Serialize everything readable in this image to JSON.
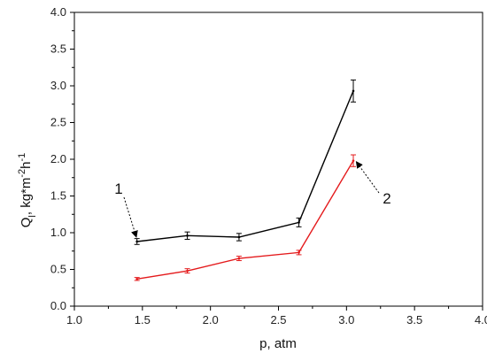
{
  "chart_data": {
    "type": "line",
    "xlabel": "p, atm",
    "ylabel": "Q",
    "ylabel_sub": "l",
    "ylabel_unit": ", kg*m",
    "ylabel_sup1": "-2",
    "ylabel_h": "h",
    "ylabel_sup2": "-1",
    "xlim": [
      1.0,
      4.0
    ],
    "ylim": [
      0.0,
      4.0
    ],
    "x_ticks": [
      "1.0",
      "1.5",
      "2.0",
      "2.5",
      "3.0",
      "3.5",
      "4.0"
    ],
    "y_ticks": [
      "0.0",
      "0.5",
      "1.0",
      "1.5",
      "2.0",
      "2.5",
      "3.0",
      "3.5",
      "4.0"
    ],
    "grid": false,
    "series": [
      {
        "label": "1",
        "color": "#000000",
        "x": [
          1.46,
          1.83,
          2.21,
          2.65,
          3.05
        ],
        "y": [
          0.88,
          0.96,
          0.94,
          1.14,
          2.93
        ],
        "err": [
          0.04,
          0.05,
          0.05,
          0.06,
          0.15
        ]
      },
      {
        "label": "2",
        "color": "#e41a1c",
        "x": [
          1.46,
          1.83,
          2.21,
          2.65,
          3.05
        ],
        "y": [
          0.37,
          0.48,
          0.65,
          0.73,
          1.98
        ],
        "err": [
          0.02,
          0.03,
          0.03,
          0.03,
          0.08
        ]
      }
    ]
  }
}
